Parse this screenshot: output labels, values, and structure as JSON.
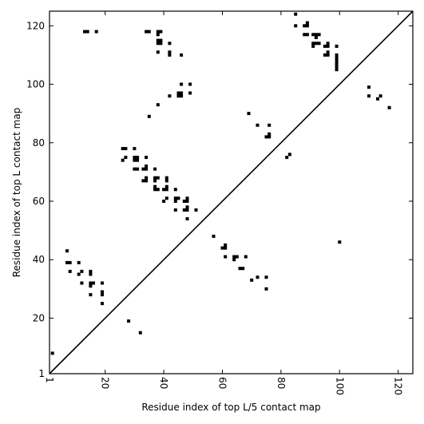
{
  "chart_data": {
    "type": "scatter",
    "xlabel": "Residue index of top L/5 contact map",
    "ylabel": "Residue index of top L contact map",
    "xlim": [
      1,
      125
    ],
    "ylim": [
      1,
      125
    ],
    "xticks": [
      1,
      20,
      40,
      60,
      80,
      100,
      120
    ],
    "yticks": [
      1,
      20,
      40,
      60,
      80,
      100,
      120
    ],
    "x_tick_rotation": -90,
    "diagonal": true,
    "grid": false,
    "marker": "square",
    "marker_color": "#000000",
    "points": [
      [
        2,
        8
      ],
      [
        32,
        15
      ],
      [
        28,
        19
      ],
      [
        19,
        25
      ],
      [
        15,
        28
      ],
      [
        19,
        28
      ],
      [
        19,
        29
      ],
      [
        15,
        31
      ],
      [
        15,
        32
      ],
      [
        16,
        32
      ],
      [
        12,
        32
      ],
      [
        19,
        32
      ],
      [
        15,
        35
      ],
      [
        15,
        36
      ],
      [
        11,
        35
      ],
      [
        12,
        36
      ],
      [
        8,
        36
      ],
      [
        7,
        39
      ],
      [
        8,
        39
      ],
      [
        11,
        39
      ],
      [
        7,
        43
      ],
      [
        75,
        30
      ],
      [
        72,
        34
      ],
      [
        75,
        34
      ],
      [
        70,
        33
      ],
      [
        66,
        37
      ],
      [
        67,
        37
      ],
      [
        68,
        41
      ],
      [
        64,
        40
      ],
      [
        64,
        41
      ],
      [
        65,
        41
      ],
      [
        61,
        41
      ],
      [
        60,
        44
      ],
      [
        61,
        44
      ],
      [
        61,
        45
      ],
      [
        57,
        48
      ],
      [
        100,
        46
      ],
      [
        48,
        54
      ],
      [
        44,
        57
      ],
      [
        47,
        57
      ],
      [
        48,
        57
      ],
      [
        51,
        57
      ],
      [
        48,
        58
      ],
      [
        44,
        60
      ],
      [
        40,
        60
      ],
      [
        44,
        61
      ],
      [
        45,
        61
      ],
      [
        47,
        60
      ],
      [
        48,
        60
      ],
      [
        48,
        61
      ],
      [
        41,
        61
      ],
      [
        37,
        64
      ],
      [
        38,
        64
      ],
      [
        40,
        64
      ],
      [
        41,
        64
      ],
      [
        41,
        65
      ],
      [
        44,
        64
      ],
      [
        37,
        65
      ],
      [
        33,
        67
      ],
      [
        34,
        67
      ],
      [
        34,
        68
      ],
      [
        37,
        67
      ],
      [
        37,
        68
      ],
      [
        38,
        68
      ],
      [
        41,
        67
      ],
      [
        41,
        68
      ],
      [
        30,
        71
      ],
      [
        31,
        71
      ],
      [
        33,
        71
      ],
      [
        34,
        71
      ],
      [
        34,
        72
      ],
      [
        37,
        71
      ],
      [
        30,
        74
      ],
      [
        31,
        74
      ],
      [
        30,
        75
      ],
      [
        31,
        75
      ],
      [
        34,
        75
      ],
      [
        26,
        74
      ],
      [
        27,
        75
      ],
      [
        26,
        78
      ],
      [
        27,
        78
      ],
      [
        30,
        78
      ],
      [
        69,
        90
      ],
      [
        72,
        86
      ],
      [
        76,
        86
      ],
      [
        75,
        82
      ],
      [
        76,
        82
      ],
      [
        76,
        83
      ],
      [
        82,
        75
      ],
      [
        83,
        76
      ],
      [
        35,
        89
      ],
      [
        38,
        93
      ],
      [
        42,
        96
      ],
      [
        45,
        96
      ],
      [
        46,
        96
      ],
      [
        45,
        97
      ],
      [
        46,
        97
      ],
      [
        49,
        97
      ],
      [
        46,
        100
      ],
      [
        49,
        100
      ],
      [
        38,
        111
      ],
      [
        42,
        110
      ],
      [
        42,
        111
      ],
      [
        46,
        110
      ],
      [
        42,
        114
      ],
      [
        38,
        114
      ],
      [
        39,
        114
      ],
      [
        38,
        115
      ],
      [
        39,
        115
      ],
      [
        38,
        117
      ],
      [
        38,
        118
      ],
      [
        39,
        118
      ],
      [
        34,
        118
      ],
      [
        35,
        118
      ],
      [
        13,
        118
      ],
      [
        14,
        118
      ],
      [
        17,
        118
      ],
      [
        85,
        124
      ],
      [
        85,
        120
      ],
      [
        88,
        120
      ],
      [
        89,
        120
      ],
      [
        89,
        121
      ],
      [
        88,
        117
      ],
      [
        89,
        117
      ],
      [
        91,
        117
      ],
      [
        92,
        117
      ],
      [
        93,
        117
      ],
      [
        92,
        116
      ],
      [
        91,
        114
      ],
      [
        92,
        114
      ],
      [
        93,
        114
      ],
      [
        91,
        113
      ],
      [
        95,
        113
      ],
      [
        96,
        113
      ],
      [
        96,
        114
      ],
      [
        95,
        110
      ],
      [
        96,
        110
      ],
      [
        96,
        111
      ],
      [
        99,
        113
      ],
      [
        99,
        105
      ],
      [
        99,
        106
      ],
      [
        99,
        107
      ],
      [
        99,
        108
      ],
      [
        99,
        109
      ],
      [
        99,
        110
      ],
      [
        110,
        99
      ],
      [
        110,
        96
      ],
      [
        113,
        95
      ],
      [
        114,
        96
      ],
      [
        117,
        92
      ]
    ]
  }
}
